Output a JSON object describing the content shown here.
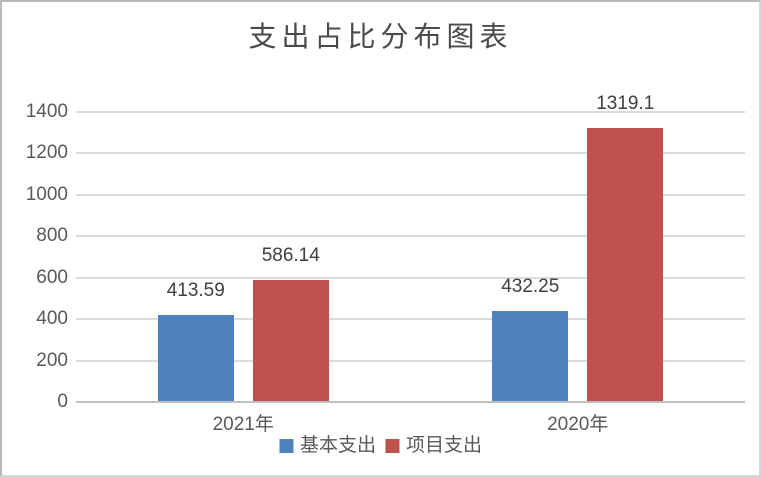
{
  "frame": {
    "background": "#ffffff",
    "border_color": "#b9b9b9"
  },
  "chart_data": {
    "type": "bar",
    "title": "支出占比分布图表",
    "categories": [
      "2021年",
      "2020年"
    ],
    "series": [
      {
        "name": "基本支出",
        "color": "#4F81BD",
        "values": [
          413.59,
          432.25
        ],
        "labels": [
          "413.59",
          "432.25"
        ]
      },
      {
        "name": "项目支出",
        "color": "#C0504D",
        "values": [
          586.14,
          1319.1
        ],
        "labels": [
          "586.14",
          "1319.1"
        ]
      }
    ],
    "xlabel": "",
    "ylabel": "",
    "ylim": [
      0,
      1400
    ],
    "yticks": [
      0,
      200,
      400,
      600,
      800,
      1000,
      1200,
      1400
    ],
    "ytick_labels": [
      "0",
      "200",
      "400",
      "600",
      "800",
      "1000",
      "1200",
      "1400"
    ],
    "grid": true,
    "data_labels_shown": true,
    "legend_position": "bottom",
    "colors": {
      "title_text": "#4a4a4a",
      "axis_label_text": "#595959",
      "data_label_text": "#404040",
      "gridline": "#dbdbdb",
      "axis_line": "#c0c0c0"
    }
  }
}
